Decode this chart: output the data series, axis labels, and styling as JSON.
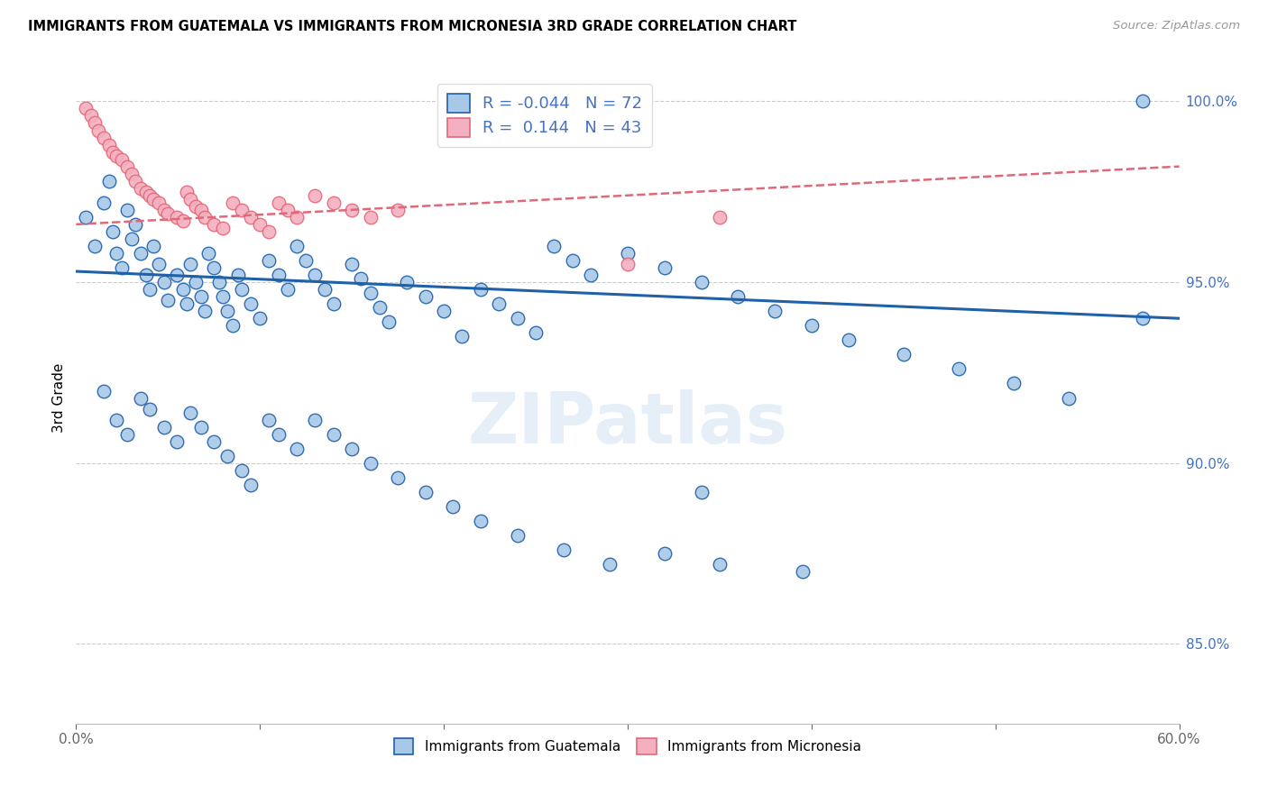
{
  "title": "IMMIGRANTS FROM GUATEMALA VS IMMIGRANTS FROM MICRONESIA 3RD GRADE CORRELATION CHART",
  "source": "Source: ZipAtlas.com",
  "ylabel": "3rd Grade",
  "xlim": [
    0.0,
    0.6
  ],
  "ylim": [
    0.828,
    1.008
  ],
  "yticks": [
    0.85,
    0.9,
    0.95,
    1.0
  ],
  "ytick_labels": [
    "85.0%",
    "90.0%",
    "95.0%",
    "100.0%"
  ],
  "xticks": [
    0.0,
    0.1,
    0.2,
    0.3,
    0.4,
    0.5,
    0.6
  ],
  "color_blue": "#a8c8e8",
  "color_pink": "#f4b0c0",
  "line_blue": "#2060a8",
  "line_pink": "#e06878",
  "blue_trend_x0": 0.0,
  "blue_trend_y0": 0.953,
  "blue_trend_x1": 0.6,
  "blue_trend_y1": 0.94,
  "pink_trend_x0": 0.0,
  "pink_trend_y0": 0.966,
  "pink_trend_x1": 0.6,
  "pink_trend_y1": 0.982,
  "blue_x": [
    0.005,
    0.01,
    0.015,
    0.018,
    0.02,
    0.022,
    0.025,
    0.028,
    0.03,
    0.032,
    0.035,
    0.038,
    0.04,
    0.042,
    0.045,
    0.048,
    0.05,
    0.055,
    0.058,
    0.06,
    0.062,
    0.065,
    0.068,
    0.07,
    0.072,
    0.075,
    0.078,
    0.08,
    0.082,
    0.085,
    0.088,
    0.09,
    0.095,
    0.1,
    0.105,
    0.11,
    0.115,
    0.12,
    0.125,
    0.13,
    0.135,
    0.14,
    0.15,
    0.155,
    0.16,
    0.165,
    0.17,
    0.18,
    0.19,
    0.2,
    0.21,
    0.22,
    0.23,
    0.24,
    0.25,
    0.26,
    0.27,
    0.28,
    0.3,
    0.32,
    0.34,
    0.36,
    0.38,
    0.4,
    0.42,
    0.45,
    0.48,
    0.51,
    0.54,
    0.58,
    0.34,
    0.58
  ],
  "blue_y": [
    0.968,
    0.96,
    0.972,
    0.978,
    0.964,
    0.958,
    0.954,
    0.97,
    0.962,
    0.966,
    0.958,
    0.952,
    0.948,
    0.96,
    0.955,
    0.95,
    0.945,
    0.952,
    0.948,
    0.944,
    0.955,
    0.95,
    0.946,
    0.942,
    0.958,
    0.954,
    0.95,
    0.946,
    0.942,
    0.938,
    0.952,
    0.948,
    0.944,
    0.94,
    0.956,
    0.952,
    0.948,
    0.96,
    0.956,
    0.952,
    0.948,
    0.944,
    0.955,
    0.951,
    0.947,
    0.943,
    0.939,
    0.95,
    0.946,
    0.942,
    0.935,
    0.948,
    0.944,
    0.94,
    0.936,
    0.96,
    0.956,
    0.952,
    0.958,
    0.954,
    0.95,
    0.946,
    0.942,
    0.938,
    0.934,
    0.93,
    0.926,
    0.922,
    0.918,
    0.94,
    0.892,
    1.0
  ],
  "blue_x_low": [
    0.015,
    0.022,
    0.028,
    0.035,
    0.04,
    0.048,
    0.055,
    0.062,
    0.068,
    0.075,
    0.082,
    0.09,
    0.095,
    0.105,
    0.11,
    0.12,
    0.13,
    0.14,
    0.15,
    0.16,
    0.175,
    0.19,
    0.205,
    0.22,
    0.24,
    0.265,
    0.29,
    0.32,
    0.35,
    0.395
  ],
  "blue_y_low": [
    0.92,
    0.912,
    0.908,
    0.918,
    0.915,
    0.91,
    0.906,
    0.914,
    0.91,
    0.906,
    0.902,
    0.898,
    0.894,
    0.912,
    0.908,
    0.904,
    0.912,
    0.908,
    0.904,
    0.9,
    0.896,
    0.892,
    0.888,
    0.884,
    0.88,
    0.876,
    0.872,
    0.875,
    0.872,
    0.87
  ],
  "pink_x": [
    0.005,
    0.008,
    0.01,
    0.012,
    0.015,
    0.018,
    0.02,
    0.022,
    0.025,
    0.028,
    0.03,
    0.032,
    0.035,
    0.038,
    0.04,
    0.042,
    0.045,
    0.048,
    0.05,
    0.055,
    0.058,
    0.06,
    0.062,
    0.065,
    0.068,
    0.07,
    0.075,
    0.08,
    0.085,
    0.09,
    0.095,
    0.1,
    0.105,
    0.11,
    0.115,
    0.12,
    0.13,
    0.14,
    0.15,
    0.16,
    0.175,
    0.3,
    0.35
  ],
  "pink_y": [
    0.998,
    0.996,
    0.994,
    0.992,
    0.99,
    0.988,
    0.986,
    0.985,
    0.984,
    0.982,
    0.98,
    0.978,
    0.976,
    0.975,
    0.974,
    0.973,
    0.972,
    0.97,
    0.969,
    0.968,
    0.967,
    0.975,
    0.973,
    0.971,
    0.97,
    0.968,
    0.966,
    0.965,
    0.972,
    0.97,
    0.968,
    0.966,
    0.964,
    0.972,
    0.97,
    0.968,
    0.974,
    0.972,
    0.97,
    0.968,
    0.97,
    0.955,
    0.968
  ]
}
